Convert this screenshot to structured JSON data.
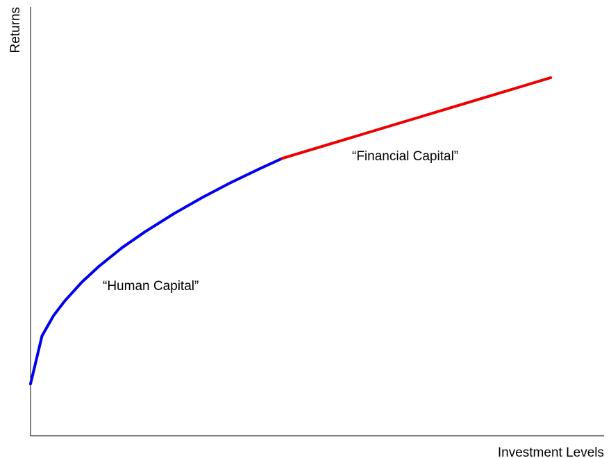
{
  "chart_data": {
    "type": "line",
    "xlabel": "Investment Levels",
    "ylabel": "Returns",
    "xlim": [
      0,
      100
    ],
    "ylim": [
      0,
      100
    ],
    "series": [
      {
        "name": "“Human Capital”",
        "color": "#0000ee",
        "x": [
          0,
          2,
          4,
          6,
          9,
          12,
          16,
          20,
          25,
          30,
          35,
          40,
          43.9
        ],
        "values": [
          12.1,
          23.3,
          28.0,
          31.5,
          35.9,
          39.6,
          43.9,
          47.6,
          51.8,
          55.6,
          59.1,
          62.3,
          64.7
        ]
      },
      {
        "name": "“Financial Capital”",
        "color": "#ee0000",
        "x": [
          43.9,
          90.7
        ],
        "values": [
          64.7,
          83.5
        ]
      }
    ]
  }
}
